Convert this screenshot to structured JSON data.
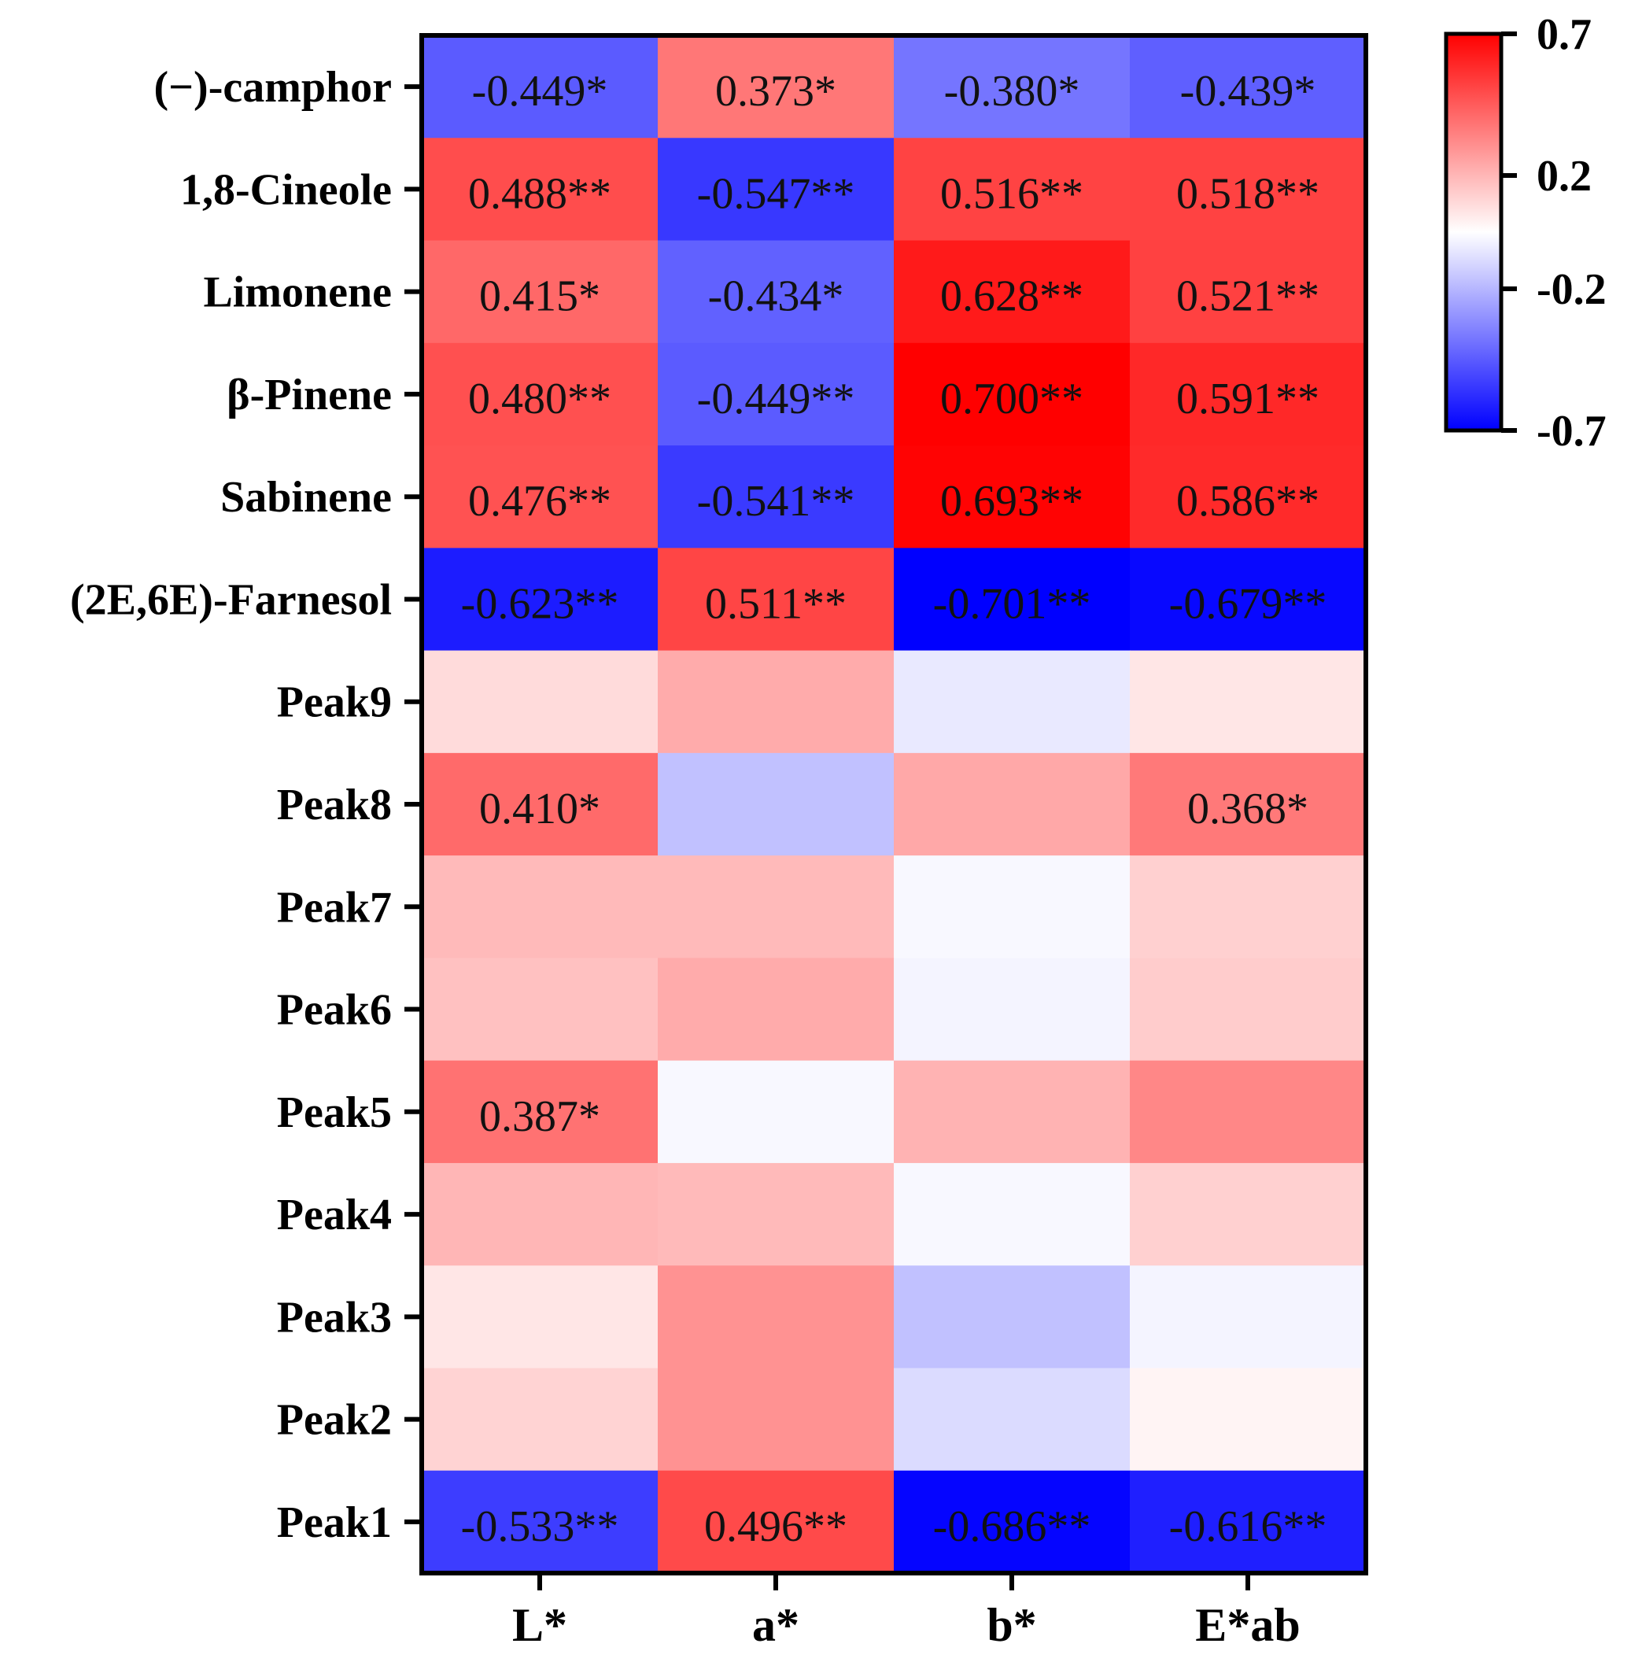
{
  "chart_data": {
    "type": "heatmap",
    "rows": [
      "(−)-camphor",
      "1,8-Cineole",
      "Limonene",
      "β-Pinene",
      "Sabinene",
      "(2E,6E)-Farnesol",
      "Peak9",
      "Peak8",
      "Peak7",
      "Peak6",
      "Peak5",
      "Peak4",
      "Peak3",
      "Peak2",
      "Peak1"
    ],
    "columns": [
      "L*",
      "a*",
      "b*",
      "E*ab"
    ],
    "values": [
      [
        -0.449,
        0.373,
        -0.38,
        -0.439
      ],
      [
        0.488,
        -0.547,
        0.516,
        0.518
      ],
      [
        0.415,
        -0.434,
        0.628,
        0.521
      ],
      [
        0.48,
        -0.449,
        0.7,
        0.591
      ],
      [
        0.476,
        -0.541,
        0.693,
        0.586
      ],
      [
        -0.623,
        0.511,
        -0.701,
        -0.679
      ],
      [
        0.1,
        0.23,
        -0.06,
        0.07
      ],
      [
        0.41,
        -0.17,
        0.24,
        0.368
      ],
      [
        0.19,
        0.19,
        -0.02,
        0.13
      ],
      [
        0.17,
        0.23,
        -0.03,
        0.14
      ],
      [
        0.387,
        -0.02,
        0.21,
        0.33
      ],
      [
        0.2,
        0.19,
        -0.02,
        0.13
      ],
      [
        0.07,
        0.3,
        -0.17,
        -0.03
      ],
      [
        0.12,
        0.3,
        -0.1,
        0.03
      ],
      [
        -0.533,
        0.496,
        -0.686,
        -0.616
      ]
    ],
    "cell_labels": [
      [
        "-0.449*",
        "0.373*",
        "-0.380*",
        "-0.439*"
      ],
      [
        "0.488**",
        "-0.547**",
        "0.516**",
        "0.518**"
      ],
      [
        "0.415*",
        "-0.434*",
        "0.628**",
        "0.521**"
      ],
      [
        "0.480**",
        "-0.449**",
        "0.700**",
        "0.591**"
      ],
      [
        "0.476**",
        "-0.541**",
        "0.693**",
        "0.586**"
      ],
      [
        "-0.623**",
        "0.511**",
        "-0.701**",
        "-0.679**"
      ],
      [
        "",
        "",
        "",
        ""
      ],
      [
        "0.410*",
        "",
        "",
        "0.368*"
      ],
      [
        "",
        "",
        "",
        ""
      ],
      [
        "",
        "",
        "",
        ""
      ],
      [
        "0.387*",
        "",
        "",
        ""
      ],
      [
        "",
        "",
        "",
        ""
      ],
      [
        "",
        "",
        "",
        ""
      ],
      [
        "",
        "",
        "",
        ""
      ],
      [
        "-0.533**",
        "0.496**",
        "-0.686**",
        "-0.616**"
      ]
    ],
    "color_scale": {
      "min": -0.7,
      "max": 0.7,
      "low_color": "#0000ff",
      "mid_color": "#ffffff",
      "high_color": "#ff0000",
      "ticks": [
        0.7,
        0.2,
        -0.2,
        -0.7
      ],
      "tick_labels": [
        "0.7",
        "0.2",
        "-0.2",
        "-0.7"
      ]
    }
  }
}
